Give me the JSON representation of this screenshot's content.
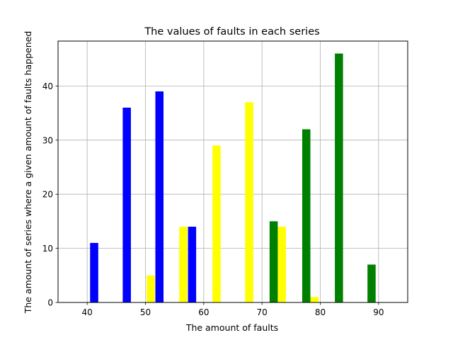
{
  "chart_data": {
    "type": "bar",
    "title": "The values of faults in each series",
    "xlabel": "The amount of faults",
    "ylabel": "The amount of series where a given amount of faults happened",
    "xlim": [
      35,
      95
    ],
    "ylim": [
      0,
      48.3
    ],
    "xticks": [
      40,
      50,
      60,
      70,
      80,
      90
    ],
    "yticks": [
      0,
      10,
      20,
      30,
      40
    ],
    "grid": true,
    "bar_width": 1.4,
    "series": [
      {
        "color": "#0000ff",
        "x": [
          41.2,
          46.8,
          52.4,
          58.0
        ],
        "values": [
          11,
          36,
          39,
          14
        ]
      },
      {
        "color": "#ffff00",
        "x": [
          50.9,
          56.5,
          62.2,
          67.8,
          73.4,
          79.0
        ],
        "values": [
          5,
          14,
          29,
          37,
          14,
          1
        ]
      },
      {
        "color": "#008000",
        "x": [
          72.0,
          77.6,
          83.2,
          88.8
        ],
        "values": [
          15,
          32,
          46,
          7
        ]
      }
    ]
  }
}
